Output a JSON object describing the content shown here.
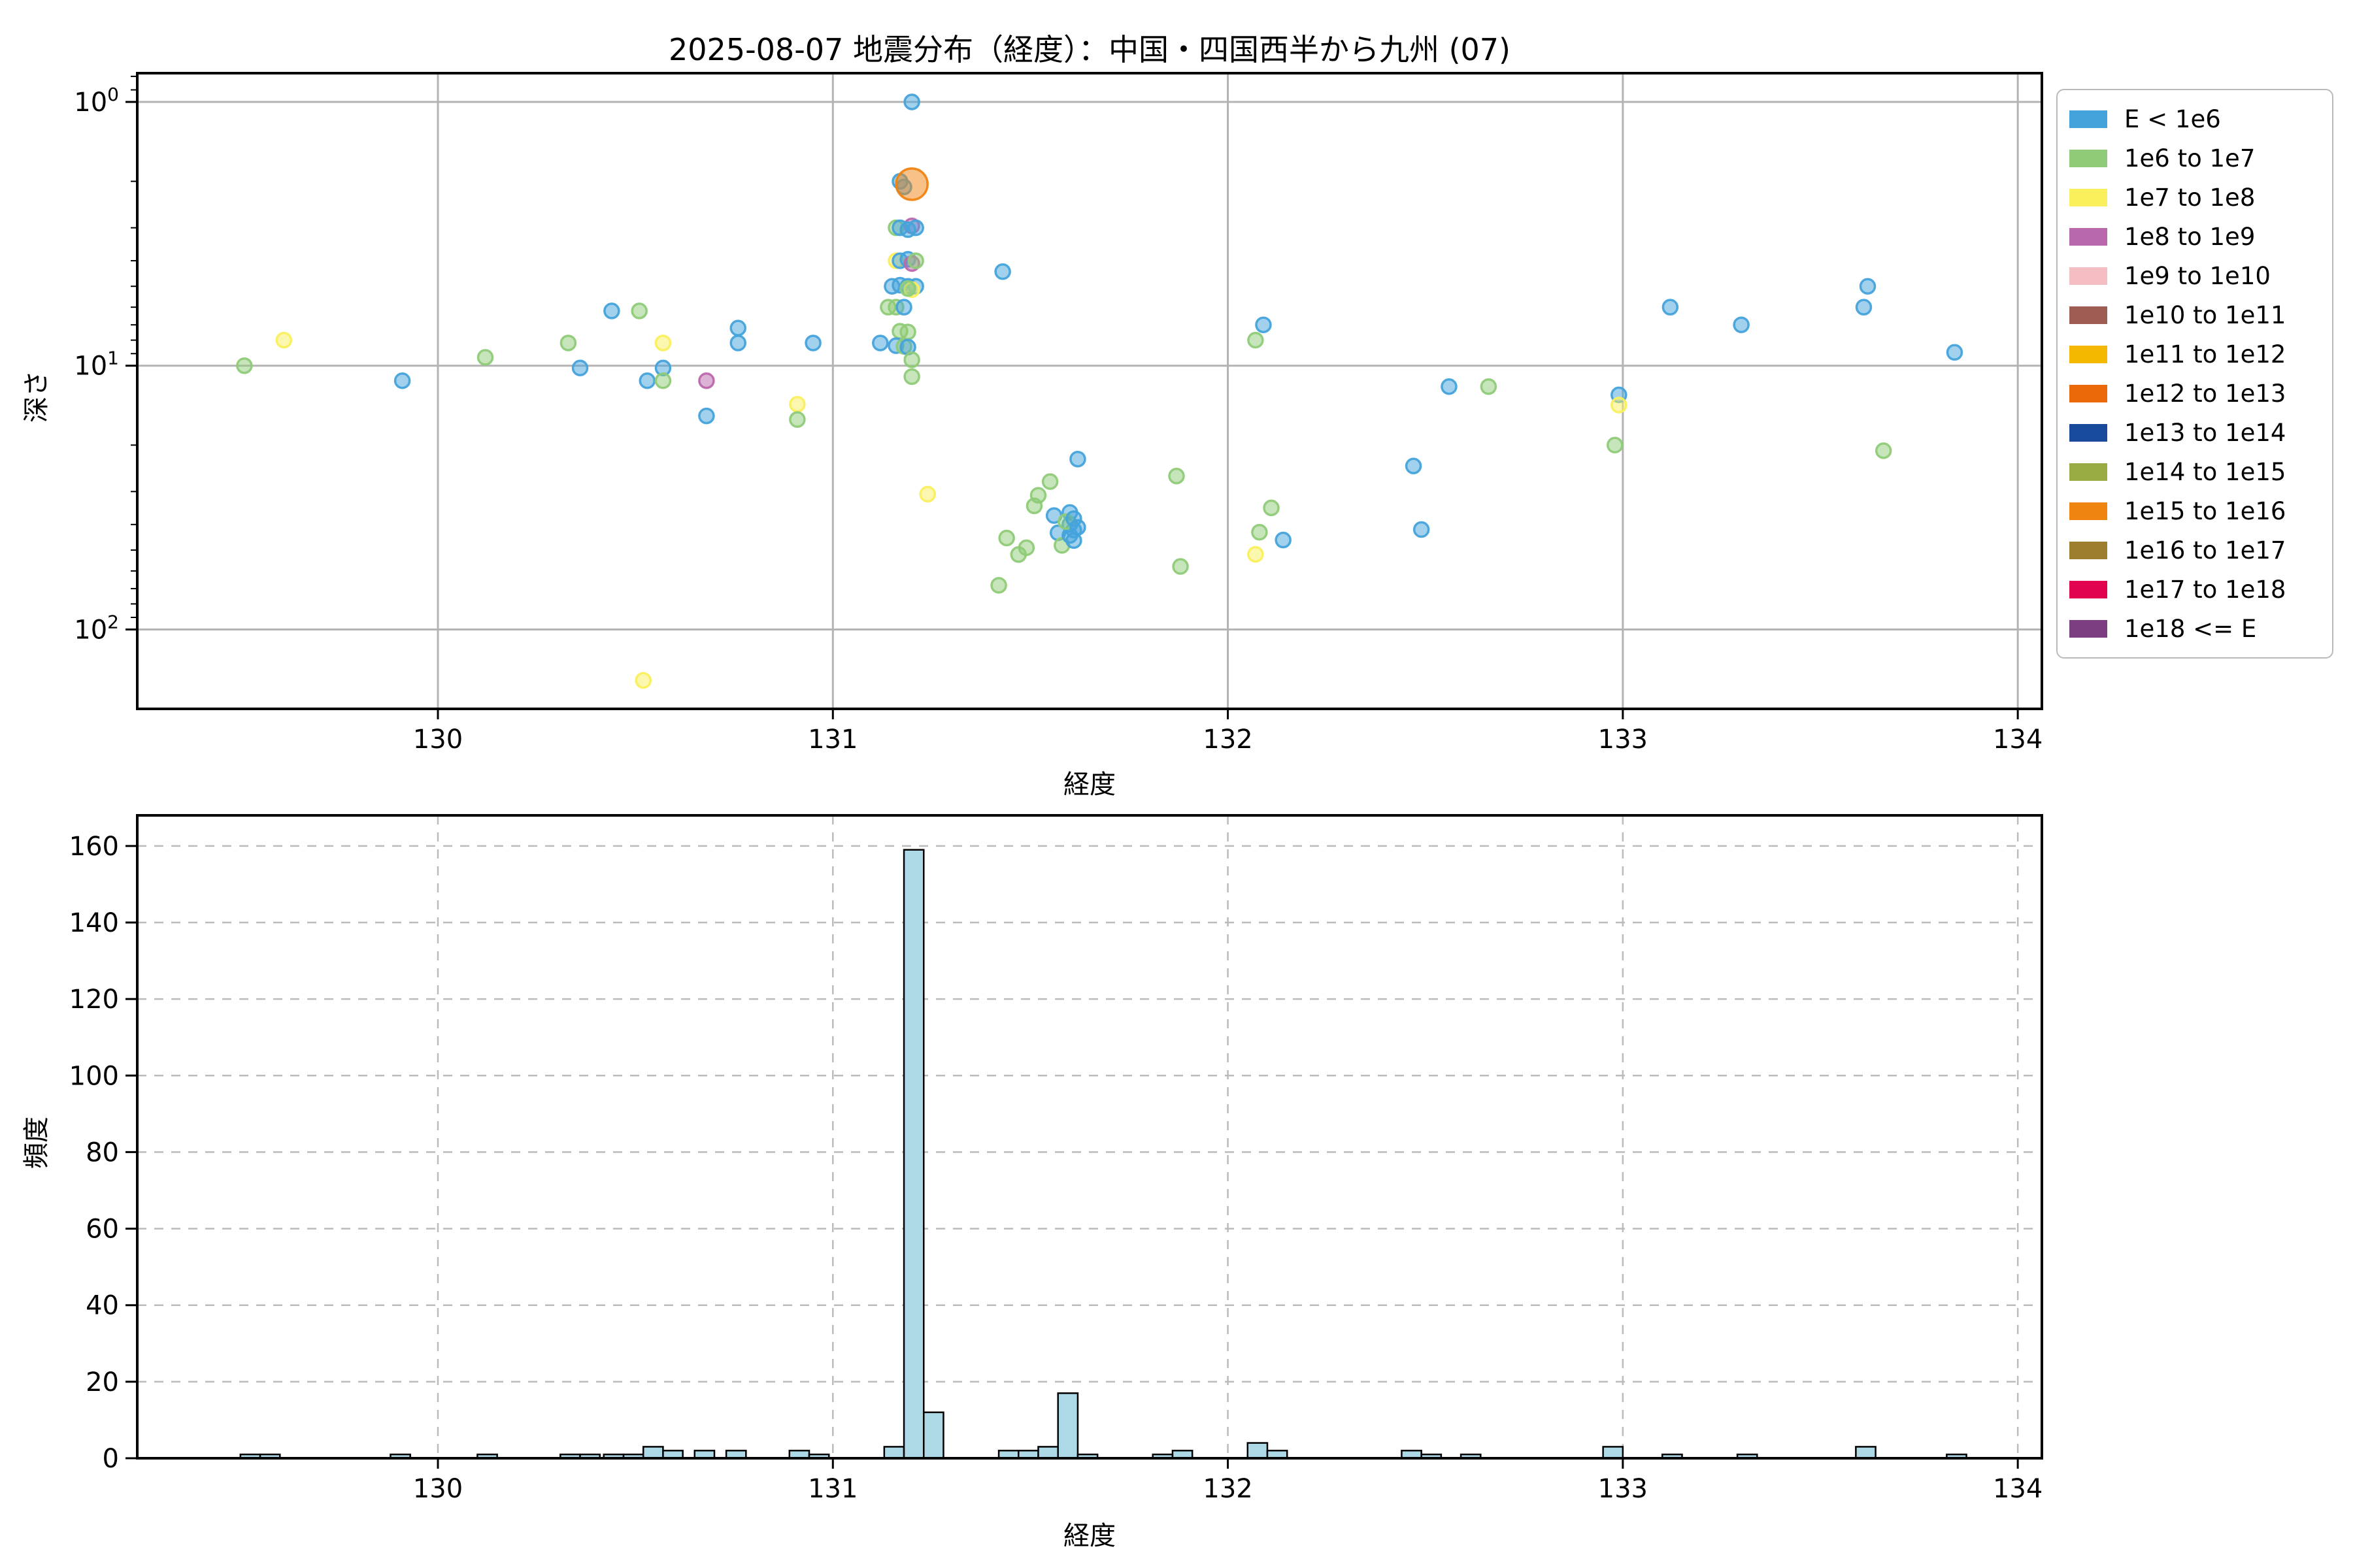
{
  "title": "2025-08-07 地震分布（経度）：中国・四国西半から九州 (07)",
  "palette": {
    "classes": [
      {
        "label": "E < 1e6",
        "color": "#45A3DB"
      },
      {
        "label": "1e6 to 1e7",
        "color": "#8FCB78"
      },
      {
        "label": "1e7 to 1e8",
        "color": "#FAEF5D"
      },
      {
        "label": "1e8 to 1e9",
        "color": "#BA68AC"
      },
      {
        "label": "1e9 to 1e10",
        "color": "#F5BEC3"
      },
      {
        "label": "1e10 to 1e11",
        "color": "#9D5B52"
      },
      {
        "label": "1e11 to 1e12",
        "color": "#F4B800"
      },
      {
        "label": "1e12 to 1e13",
        "color": "#EB6909"
      },
      {
        "label": "1e13 to 1e14",
        "color": "#1A4A9C"
      },
      {
        "label": "1e14 to 1e15",
        "color": "#99AB43"
      },
      {
        "label": "1e15 to 1e16",
        "color": "#F08410"
      },
      {
        "label": "1e16 to 1e17",
        "color": "#9C7E2E"
      },
      {
        "label": "1e17 to 1e18",
        "color": "#E1034F"
      },
      {
        "label": "1e18 <= E",
        "color": "#7D3E81"
      }
    ],
    "grid_solid": "#b3b3b3",
    "grid_dashed": "#bbbbbb",
    "bar_fill": "#ADD8E6",
    "bar_edge": "#000000",
    "spine": "#000000"
  },
  "chart_data": [
    {
      "type": "scatter",
      "title": "2025-08-07 地震分布（経度）：中国・四国西半から九州 (07)",
      "xlabel": "経度",
      "ylabel": "深さ",
      "xlim": [
        129.2388,
        134.061
      ],
      "ylim": {
        "min": 0.778,
        "max": 200,
        "log": true,
        "inverted": true
      },
      "xticks": [
        130,
        131,
        132,
        133,
        134
      ],
      "ytick_exponents": [
        0,
        1,
        2
      ],
      "grid": true,
      "legend_position": "outside upper right",
      "points_format": "[longitude, depth_km, class_index, radius_px_optional]",
      "points": [
        [
          129.51,
          10.0,
          1
        ],
        [
          129.61,
          8.0,
          2
        ],
        [
          129.91,
          11.4,
          0
        ],
        [
          130.12,
          9.3,
          1
        ],
        [
          130.33,
          8.2,
          1
        ],
        [
          130.36,
          10.2,
          0
        ],
        [
          130.44,
          6.2,
          0
        ],
        [
          130.51,
          6.2,
          1
        ],
        [
          130.53,
          11.4,
          0
        ],
        [
          130.57,
          8.2,
          2
        ],
        [
          130.57,
          10.2,
          0
        ],
        [
          130.57,
          11.4,
          1
        ],
        [
          130.68,
          11.4,
          3
        ],
        [
          130.68,
          15.5,
          0
        ],
        [
          130.76,
          7.2,
          0
        ],
        [
          130.76,
          8.2,
          0
        ],
        [
          130.52,
          156,
          2
        ],
        [
          130.91,
          14.0,
          2
        ],
        [
          130.91,
          16.0,
          1
        ],
        [
          130.95,
          8.2,
          0
        ],
        [
          131.2,
          1.0,
          0
        ],
        [
          131.17,
          2.0,
          0
        ],
        [
          131.18,
          2.1,
          0
        ],
        [
          131.2,
          2.05,
          10,
          24
        ],
        [
          131.16,
          3.0,
          1
        ],
        [
          131.2,
          2.95,
          3
        ],
        [
          131.17,
          3.0,
          0
        ],
        [
          131.19,
          3.05,
          0
        ],
        [
          131.21,
          3.0,
          0
        ],
        [
          131.16,
          4.0,
          2
        ],
        [
          131.17,
          4.0,
          0
        ],
        [
          131.19,
          3.95,
          0
        ],
        [
          131.2,
          4.1,
          3
        ],
        [
          131.21,
          4.0,
          1
        ],
        [
          131.15,
          5.0,
          0
        ],
        [
          131.17,
          4.95,
          0
        ],
        [
          131.19,
          5.0,
          0
        ],
        [
          131.21,
          5.0,
          0
        ],
        [
          131.2,
          5.15,
          2
        ],
        [
          131.19,
          5.1,
          1
        ],
        [
          131.14,
          6.0,
          1
        ],
        [
          131.16,
          6.0,
          1
        ],
        [
          131.18,
          6.0,
          0
        ],
        [
          131.17,
          7.4,
          1
        ],
        [
          131.19,
          7.45,
          1
        ],
        [
          131.12,
          8.2,
          0
        ],
        [
          131.16,
          8.4,
          0
        ],
        [
          131.18,
          8.45,
          1
        ],
        [
          131.19,
          8.5,
          0
        ],
        [
          131.2,
          9.5,
          1
        ],
        [
          131.2,
          11.0,
          1
        ],
        [
          131.24,
          30.7,
          2
        ],
        [
          131.43,
          4.4,
          0
        ],
        [
          131.62,
          22.6,
          0
        ],
        [
          131.44,
          45,
          1
        ],
        [
          131.42,
          68,
          1
        ],
        [
          131.47,
          52,
          1
        ],
        [
          131.49,
          49,
          1
        ],
        [
          131.51,
          34,
          1
        ],
        [
          131.52,
          31,
          1
        ],
        [
          131.55,
          27.5,
          1
        ],
        [
          131.56,
          37,
          0
        ],
        [
          131.57,
          43,
          0
        ],
        [
          131.58,
          48,
          1
        ],
        [
          131.6,
          36,
          0
        ],
        [
          131.6,
          40,
          0
        ],
        [
          131.61,
          42,
          0
        ],
        [
          131.6,
          44,
          0
        ],
        [
          131.61,
          46,
          0
        ],
        [
          131.59,
          39,
          1
        ],
        [
          131.62,
          41,
          0
        ],
        [
          131.61,
          38,
          0
        ],
        [
          131.87,
          26.2,
          1
        ],
        [
          131.88,
          57.7,
          1
        ],
        [
          132.09,
          7.0,
          0
        ],
        [
          132.07,
          8.0,
          1
        ],
        [
          132.11,
          34.6,
          1
        ],
        [
          132.08,
          42.8,
          1
        ],
        [
          132.14,
          45.8,
          0
        ],
        [
          132.07,
          51.9,
          2
        ],
        [
          132.47,
          24,
          0
        ],
        [
          132.49,
          41.8,
          0
        ],
        [
          132.56,
          12.0,
          0
        ],
        [
          132.66,
          12.0,
          1
        ],
        [
          132.99,
          12.9,
          0
        ],
        [
          132.99,
          14.1,
          2
        ],
        [
          132.98,
          20.0,
          1
        ],
        [
          133.12,
          6.0,
          0
        ],
        [
          133.3,
          7.0,
          0
        ],
        [
          133.62,
          5.0,
          0
        ],
        [
          133.61,
          6.0,
          0
        ],
        [
          133.84,
          8.9,
          0
        ],
        [
          133.66,
          21,
          1
        ]
      ]
    },
    {
      "type": "histogram",
      "xlabel": "経度",
      "ylabel": "頻度",
      "xlim": [
        129.2388,
        134.061
      ],
      "ylim": [
        0,
        168
      ],
      "xticks": [
        130,
        131,
        132,
        133,
        134
      ],
      "yticks": [
        0,
        20,
        40,
        60,
        80,
        100,
        120,
        140,
        160
      ],
      "grid": "dashed",
      "bin_width": 0.05,
      "bins_format": "[bin_left_longitude, count]",
      "bins": [
        [
          129.5,
          1
        ],
        [
          129.55,
          1
        ],
        [
          129.88,
          1
        ],
        [
          130.1,
          1
        ],
        [
          130.31,
          1
        ],
        [
          130.36,
          1
        ],
        [
          130.42,
          1
        ],
        [
          130.47,
          1
        ],
        [
          130.52,
          3
        ],
        [
          130.57,
          2
        ],
        [
          130.65,
          2
        ],
        [
          130.73,
          2
        ],
        [
          130.89,
          2
        ],
        [
          130.94,
          1
        ],
        [
          131.13,
          3
        ],
        [
          131.18,
          159
        ],
        [
          131.23,
          12
        ],
        [
          131.42,
          2
        ],
        [
          131.47,
          2
        ],
        [
          131.52,
          3
        ],
        [
          131.57,
          17
        ],
        [
          131.62,
          1
        ],
        [
          131.81,
          1
        ],
        [
          131.86,
          2
        ],
        [
          132.05,
          4
        ],
        [
          132.1,
          2
        ],
        [
          132.44,
          2
        ],
        [
          132.49,
          1
        ],
        [
          132.59,
          1
        ],
        [
          132.95,
          3
        ],
        [
          133.1,
          1
        ],
        [
          133.29,
          1
        ],
        [
          133.59,
          3
        ],
        [
          133.82,
          1
        ]
      ]
    }
  ]
}
